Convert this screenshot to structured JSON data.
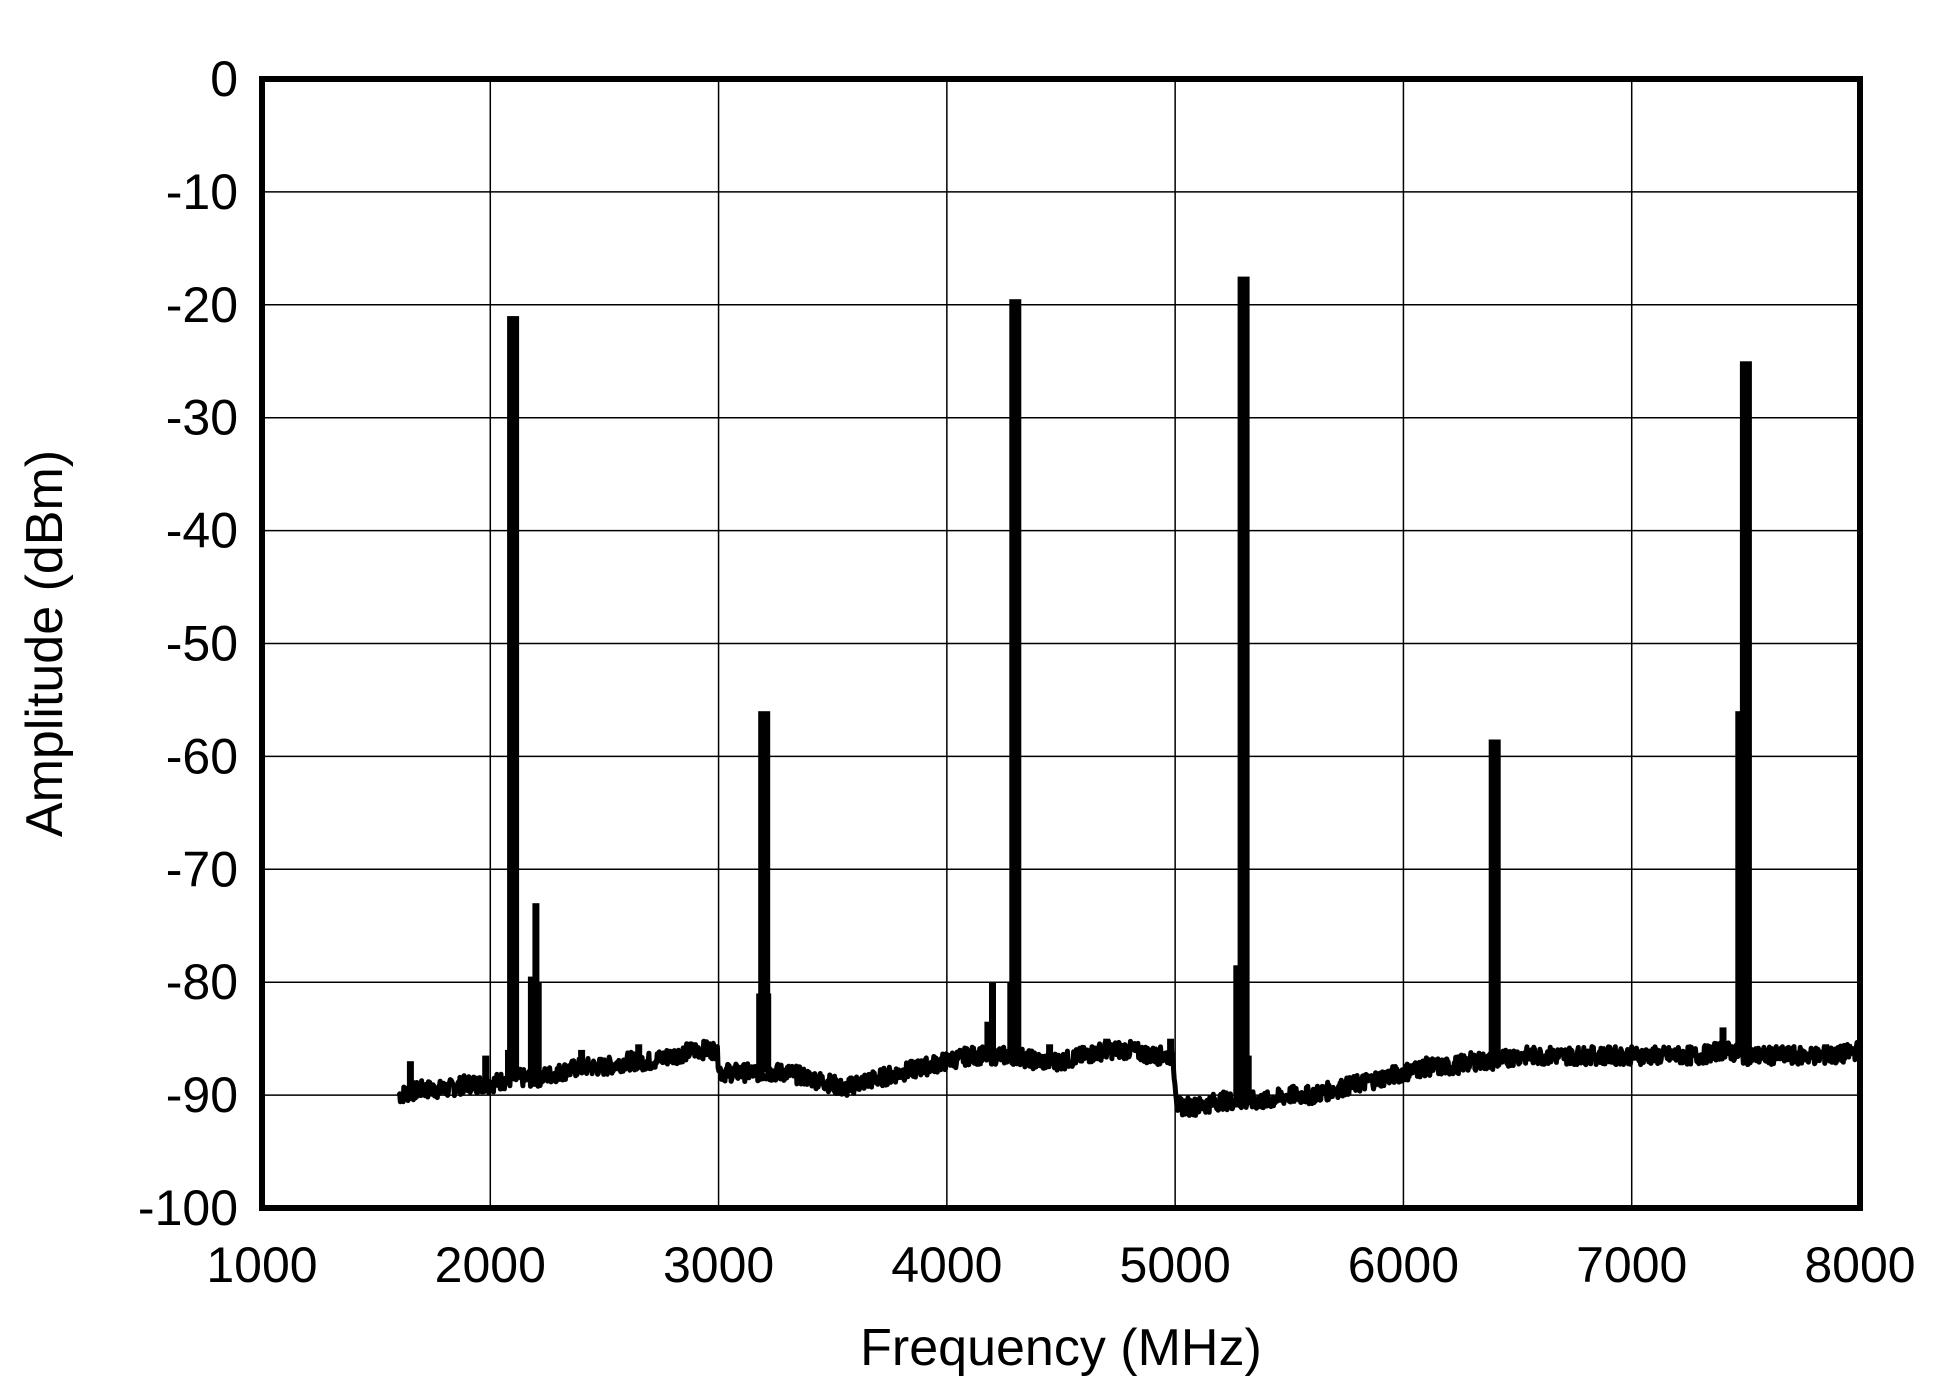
{
  "chart_data": {
    "type": "line",
    "title": "",
    "xlabel": "Frequency (MHz)",
    "ylabel": "Amplitude (dBm)",
    "xlim": [
      1000,
      8000
    ],
    "ylim": [
      -100,
      0
    ],
    "x_ticks": [
      "1000",
      "2000",
      "3000",
      "4000",
      "5000",
      "6000",
      "7000",
      "8000"
    ],
    "y_ticks": [
      "0",
      "-10",
      "-20",
      "-30",
      "-40",
      "-50",
      "-60",
      "-70",
      "-80",
      "-90",
      "-100"
    ],
    "grid": true,
    "line_color": "#000000",
    "noise_floor": {
      "x": [
        1600,
        1700,
        1800,
        1900,
        2000,
        2100,
        2200,
        2300,
        2400,
        2500,
        2600,
        2700,
        2800,
        2900,
        2990,
        3010,
        3100,
        3200,
        3300,
        3400,
        3500,
        3550,
        3600,
        3700,
        3800,
        3900,
        4000,
        4100,
        4200,
        4300,
        4400,
        4500,
        4600,
        4700,
        4800,
        4900,
        4990,
        5010,
        5100,
        5200,
        5300,
        5400,
        5500,
        5600,
        5700,
        5800,
        5900,
        6000,
        6100,
        6200,
        6300,
        6400,
        6500,
        6600,
        6700,
        6800,
        6900,
        7000,
        7100,
        7200,
        7300,
        7400,
        7500,
        7600,
        7700,
        7800,
        7900,
        8000
      ],
      "y": [
        -90,
        -89.5,
        -89.5,
        -89,
        -89,
        -88.5,
        -88.5,
        -88,
        -87.5,
        -87.5,
        -87,
        -87,
        -86.5,
        -86,
        -86,
        -88,
        -88,
        -88,
        -88,
        -88.5,
        -89,
        -89.5,
        -89,
        -88.5,
        -88,
        -87.5,
        -87,
        -86.5,
        -86.5,
        -86.5,
        -87,
        -87,
        -86.5,
        -86,
        -86,
        -86.5,
        -86.5,
        -91,
        -91,
        -90.5,
        -90.5,
        -90.5,
        -90,
        -90,
        -89.5,
        -89,
        -88.5,
        -88,
        -87.5,
        -87.5,
        -87,
        -87,
        -86.5,
        -86.5,
        -86.5,
        -86.5,
        -86.5,
        -86.5,
        -86.5,
        -86.5,
        -86.5,
        -86,
        -86.5,
        -86.5,
        -86.5,
        -86.5,
        -86.5,
        -86
      ]
    },
    "spurs": [
      {
        "x": 1650,
        "y": -87
      },
      {
        "x": 1980,
        "y": -86.5
      },
      {
        "x": 2080,
        "y": -86
      },
      {
        "x": 2100,
        "y": -21
      },
      {
        "x": 2180,
        "y": -79.5
      },
      {
        "x": 2200,
        "y": -73
      },
      {
        "x": 2210,
        "y": -80
      },
      {
        "x": 2400,
        "y": -86
      },
      {
        "x": 2650,
        "y": -85.5
      },
      {
        "x": 3180,
        "y": -81
      },
      {
        "x": 3200,
        "y": -56
      },
      {
        "x": 3215,
        "y": -81
      },
      {
        "x": 4180,
        "y": -83.5
      },
      {
        "x": 4200,
        "y": -80
      },
      {
        "x": 4280,
        "y": -80
      },
      {
        "x": 4300,
        "y": -19.5
      },
      {
        "x": 4450,
        "y": -85.5
      },
      {
        "x": 4700,
        "y": -85
      },
      {
        "x": 4980,
        "y": -85
      },
      {
        "x": 5270,
        "y": -78.5
      },
      {
        "x": 5300,
        "y": -17.5
      },
      {
        "x": 5320,
        "y": -86.5
      },
      {
        "x": 6390,
        "y": -84
      },
      {
        "x": 6400,
        "y": -58.5
      },
      {
        "x": 6410,
        "y": -84
      },
      {
        "x": 7400,
        "y": -84
      },
      {
        "x": 7480,
        "y": -56
      },
      {
        "x": 7500,
        "y": -25
      },
      {
        "x": 7850,
        "y": -85.5
      },
      {
        "x": 7950,
        "y": -85.5
      }
    ]
  }
}
